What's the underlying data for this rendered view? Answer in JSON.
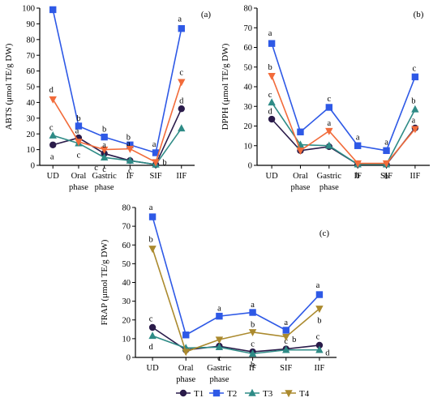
{
  "chart_data": [
    {
      "panel": "(a)",
      "type": "line",
      "ylabel": "ABTS (μmol TE/g DW)",
      "ylim": [
        0,
        100
      ],
      "yticks": [
        0,
        10,
        20,
        30,
        40,
        50,
        60,
        70,
        80,
        90,
        100
      ],
      "categories": [
        [
          "UD"
        ],
        [
          "Oral",
          "phase"
        ],
        [
          "Gastric",
          "phase"
        ],
        [
          "IF"
        ],
        [
          "SIF"
        ],
        [
          "IIF"
        ]
      ],
      "grid": false,
      "series": [
        {
          "name": "T1",
          "color": "#2a1b4a",
          "marker": "circle",
          "values": [
            13,
            17.5,
            7.5,
            3,
            0.5,
            36
          ],
          "letters": [
            {
              "text": "a",
              "dx": -1,
              "dy": 14
            },
            {
              "text": "a",
              "dx": -2,
              "dy": -9
            },
            {
              "text": "c",
              "dx": -10,
              "dy": 17
            },
            {
              "text": "c",
              "dx": 0,
              "dy": 12
            },
            {
              "text": "b",
              "dx": 11,
              "dy": -3
            },
            {
              "text": "d",
              "dx": 0,
              "dy": -10
            }
          ]
        },
        {
          "name": "T2",
          "color": "#2e59e6",
          "marker": "square",
          "values": [
            99,
            25,
            18,
            13,
            8,
            87
          ],
          "letters": [
            {
              "text": "a",
              "dx": -3,
              "dy": -16
            },
            {
              "text": "b",
              "dx": 0,
              "dy": -10
            },
            {
              "text": "b",
              "dx": 0,
              "dy": -10
            },
            {
              "text": "b",
              "dx": -2,
              "dy": -10
            },
            {
              "text": "a",
              "dx": -2,
              "dy": -11
            },
            {
              "text": "a",
              "dx": -2,
              "dy": -12
            }
          ]
        },
        {
          "name": "T3",
          "color": "#2e8b86",
          "marker": "triangle",
          "values": [
            19,
            14,
            5,
            3,
            0.5,
            23.5
          ],
          "letters": [
            {
              "text": "c",
              "dx": -2,
              "dy": -10
            },
            {
              "text": "c",
              "dx": 0,
              "dy": 14
            },
            {
              "text": "c",
              "dx": 0,
              "dy": 14
            },
            {
              "text": "",
              "dx": 0,
              "dy": 0
            },
            {
              "text": "",
              "dx": 0,
              "dy": 0
            },
            {
              "text": "",
              "dx": 0,
              "dy": 0
            }
          ]
        },
        {
          "name": "T4",
          "color": "#f26b3a",
          "marker": "triangle-down",
          "values": [
            42,
            15,
            10,
            10.5,
            2,
            53
          ],
          "letters": [
            {
              "text": "d",
              "dx": -2,
              "dy": -12
            },
            {
              "text": "",
              "dx": 0,
              "dy": 0
            },
            {
              "text": "a",
              "dx": 0,
              "dy": -6
            },
            {
              "text": "a",
              "dx": -2,
              "dy": -7
            },
            {
              "text": "",
              "dx": 0,
              "dy": 0
            },
            {
              "text": "c",
              "dx": 0,
              "dy": -12
            }
          ]
        }
      ]
    },
    {
      "panel": "(b)",
      "type": "line",
      "ylabel": "DPPH (μmol TE/g DW)",
      "ylim": [
        0,
        80
      ],
      "yticks": [
        0,
        10,
        20,
        30,
        40,
        50,
        60,
        70,
        80
      ],
      "categories": [
        [
          "UD"
        ],
        [
          "Oral",
          "phase"
        ],
        [
          "Gastric",
          "phase"
        ],
        [
          "IF"
        ],
        [
          "SIF"
        ],
        [
          "IIF"
        ]
      ],
      "grid": false,
      "series": [
        {
          "name": "T1",
          "color": "#2a1b4a",
          "marker": "circle",
          "values": [
            23.5,
            7.5,
            9.5,
            0.5,
            0.5,
            19
          ],
          "letters": [
            {
              "text": "d",
              "dx": -2,
              "dy": -10
            },
            {
              "text": "",
              "dx": 0,
              "dy": 0
            },
            {
              "text": "",
              "dx": 0,
              "dy": 0
            },
            {
              "text": "",
              "dx": 0,
              "dy": 0
            },
            {
              "text": "",
              "dx": 0,
              "dy": 0
            },
            {
              "text": "",
              "dx": 0,
              "dy": 0
            }
          ]
        },
        {
          "name": "T2",
          "color": "#2e59e6",
          "marker": "square",
          "values": [
            62,
            17,
            29.5,
            10,
            7.5,
            45
          ],
          "letters": [
            {
              "text": "a",
              "dx": -2,
              "dy": -13
            },
            {
              "text": "",
              "dx": 0,
              "dy": 0
            },
            {
              "text": "c",
              "dx": 0,
              "dy": -11
            },
            {
              "text": "a",
              "dx": 0,
              "dy": -11
            },
            {
              "text": "a",
              "dx": 0,
              "dy": -11
            },
            {
              "text": "c",
              "dx": -1,
              "dy": -11
            }
          ]
        },
        {
          "name": "T3",
          "color": "#2e8b86",
          "marker": "triangle",
          "values": [
            32,
            10.5,
            10,
            0.5,
            0.5,
            28.5
          ],
          "letters": [
            {
              "text": "c",
              "dx": -2,
              "dy": -10
            },
            {
              "text": "",
              "dx": 0,
              "dy": 0
            },
            {
              "text": "",
              "dx": 0,
              "dy": 0
            },
            {
              "text": "b",
              "dx": 0,
              "dy": 13
            },
            {
              "text": "b",
              "dx": 0,
              "dy": 14
            },
            {
              "text": "b",
              "dx": -2,
              "dy": -11
            }
          ]
        },
        {
          "name": "T4",
          "color": "#f26b3a",
          "marker": "triangle-down",
          "values": [
            45.5,
            7.5,
            17.5,
            1,
            1,
            18.5
          ],
          "letters": [
            {
              "text": "b",
              "dx": -2,
              "dy": -11
            },
            {
              "text": "",
              "dx": 0,
              "dy": 0
            },
            {
              "text": "a",
              "dx": 0,
              "dy": -10
            },
            {
              "text": "",
              "dx": 0,
              "dy": 0
            },
            {
              "text": "",
              "dx": 0,
              "dy": 0
            },
            {
              "text": "a",
              "dx": -2,
              "dy": -11
            }
          ]
        }
      ]
    },
    {
      "panel": "(c)",
      "type": "line",
      "ylabel": "FRAP (μmol TE/g DW)",
      "ylim": [
        0,
        80
      ],
      "yticks": [
        0,
        10,
        20,
        30,
        40,
        50,
        60,
        70,
        80
      ],
      "categories": [
        [
          "UD"
        ],
        [
          "Oral",
          "phase"
        ],
        [
          "Gastric",
          "phase"
        ],
        [
          "IF"
        ],
        [
          "SIF"
        ],
        [
          "IIF"
        ]
      ],
      "grid": false,
      "legend": "bottom",
      "series": [
        {
          "name": "T1",
          "color": "#2a1b4a",
          "marker": "circle",
          "values": [
            16,
            4,
            6,
            3,
            4.5,
            6.5
          ],
          "letters": [
            {
              "text": "c",
              "dx": -2,
              "dy": -11
            },
            {
              "text": "",
              "dx": 0,
              "dy": 0
            },
            {
              "text": "",
              "dx": 0,
              "dy": 0
            },
            {
              "text": "c",
              "dx": 0,
              "dy": -10
            },
            {
              "text": "c",
              "dx": 0,
              "dy": -10
            },
            {
              "text": "c",
              "dx": -2,
              "dy": -11
            }
          ]
        },
        {
          "name": "T2",
          "color": "#2e59e6",
          "marker": "square",
          "values": [
            75,
            12,
            22,
            24,
            14.5,
            33.5
          ],
          "letters": [
            {
              "text": "a",
              "dx": -2,
              "dy": -12
            },
            {
              "text": "",
              "dx": 0,
              "dy": 0
            },
            {
              "text": "a",
              "dx": 0,
              "dy": -10
            },
            {
              "text": "a",
              "dx": 0,
              "dy": -10
            },
            {
              "text": "a",
              "dx": 0,
              "dy": -10
            },
            {
              "text": "a",
              "dx": -2,
              "dy": -12
            }
          ]
        },
        {
          "name": "T3",
          "color": "#2e8b86",
          "marker": "triangle",
          "values": [
            11.5,
            5,
            5.5,
            2,
            4,
            4
          ],
          "letters": [
            {
              "text": "d",
              "dx": -2,
              "dy": 13
            },
            {
              "text": "",
              "dx": 0,
              "dy": 0
            },
            {
              "text": "c",
              "dx": 0,
              "dy": 13
            },
            {
              "text": "b",
              "dx": 0,
              "dy": 13
            },
            {
              "text": "",
              "dx": 0,
              "dy": 0
            },
            {
              "text": "d",
              "dx": 10,
              "dy": 3
            }
          ]
        },
        {
          "name": "T4",
          "color": "#ab8a2e",
          "marker": "triangle-down",
          "values": [
            58,
            3,
            9.5,
            13.5,
            11,
            26
          ],
          "letters": [
            {
              "text": "b",
              "dx": -2,
              "dy": -12
            },
            {
              "text": "",
              "dx": 0,
              "dy": 0
            },
            {
              "text": "",
              "dx": 0,
              "dy": 0
            },
            {
              "text": "b",
              "dx": 0,
              "dy": -10
            },
            {
              "text": "b",
              "dx": 10,
              "dy": 3
            },
            {
              "text": "b",
              "dx": 0,
              "dy": 14
            }
          ]
        }
      ]
    }
  ]
}
